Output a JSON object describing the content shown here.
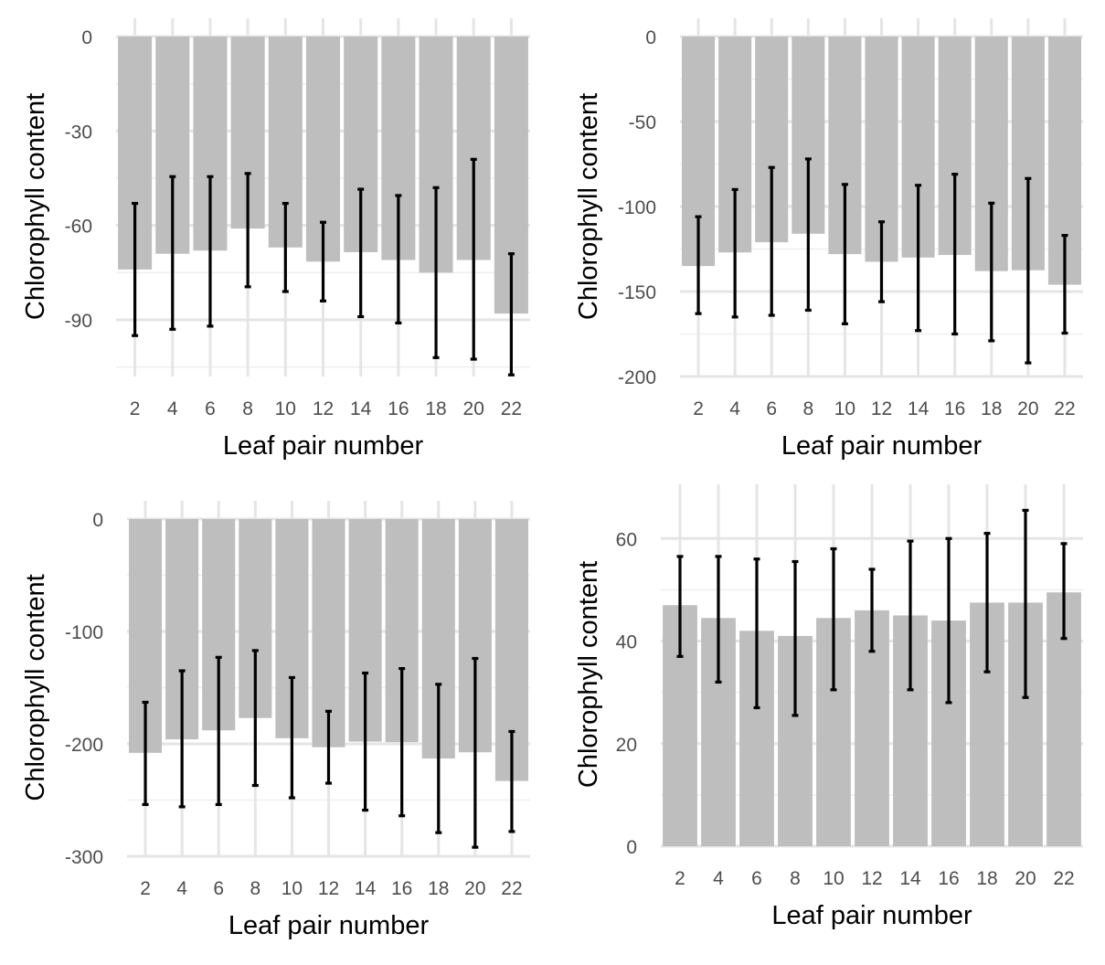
{
  "chart_data": [
    {
      "type": "bar",
      "panel": "top-left",
      "xlabel": "Leaf pair number",
      "ylabel": "Chlorophyll content",
      "x_ticks": [
        "2",
        "4",
        "6",
        "8",
        "10",
        "12",
        "14",
        "16",
        "18",
        "20",
        "22"
      ],
      "y_ticks": [
        "0",
        "-30",
        "-60",
        "-90"
      ],
      "ylim": [
        -108,
        0
      ],
      "grid": true,
      "categories": [
        2,
        4,
        6,
        8,
        10,
        12,
        14,
        16,
        18,
        20,
        22
      ],
      "values": [
        -74,
        -69,
        -68,
        -61,
        -67,
        -71.5,
        -68.5,
        -71,
        -75,
        -71,
        -88
      ],
      "error_low": [
        -95,
        -93,
        -92,
        -79.5,
        -81,
        -84,
        -89,
        -91,
        -102,
        -102.5,
        -107.5
      ],
      "error_high": [
        -53,
        -44.5,
        -44.5,
        -43.5,
        -53,
        -59,
        -48.5,
        -50.5,
        -48,
        -39,
        -69
      ]
    },
    {
      "type": "bar",
      "panel": "top-right",
      "xlabel": "Leaf pair number",
      "ylabel": "Chlorophyll content",
      "x_ticks": [
        "2",
        "4",
        "6",
        "8",
        "10",
        "12",
        "14",
        "16",
        "18",
        "20",
        "22"
      ],
      "y_ticks": [
        "0",
        "-50",
        "-100",
        "-150",
        "-200"
      ],
      "ylim": [
        -200,
        0
      ],
      "grid": true,
      "categories": [
        2,
        4,
        6,
        8,
        10,
        12,
        14,
        16,
        18,
        20,
        22
      ],
      "values": [
        -135,
        -127,
        -121,
        -116,
        -128,
        -132.5,
        -130,
        -128.5,
        -138,
        -137.5,
        -146
      ],
      "error_low": [
        -163,
        -165,
        -164,
        -161,
        -169,
        -156,
        -173,
        -175,
        -179,
        -192,
        -174.5
      ],
      "error_high": [
        -106,
        -90,
        -77,
        -72,
        -87,
        -109,
        -87.5,
        -81,
        -98,
        -83.5,
        -117
      ]
    },
    {
      "type": "bar",
      "panel": "bottom-left",
      "xlabel": "Leaf pair number",
      "ylabel": "Chlorophyll content",
      "x_ticks": [
        "2",
        "4",
        "6",
        "8",
        "10",
        "12",
        "14",
        "16",
        "18",
        "20",
        "22"
      ],
      "y_ticks": [
        "0",
        "-100",
        "-200",
        "-300"
      ],
      "ylim": [
        -300,
        0
      ],
      "grid": true,
      "categories": [
        2,
        4,
        6,
        8,
        10,
        12,
        14,
        16,
        18,
        20,
        22
      ],
      "values": [
        -208,
        -196,
        -188,
        -177,
        -195,
        -203,
        -198,
        -198.5,
        -213,
        -207.5,
        -233
      ],
      "error_low": [
        -254,
        -256,
        -254,
        -237,
        -248,
        -235,
        -259,
        -264,
        -279,
        -292,
        -278
      ],
      "error_high": [
        -163,
        -135,
        -123,
        -117,
        -141,
        -171,
        -137,
        -133,
        -147,
        -124,
        -189
      ]
    },
    {
      "type": "bar",
      "panel": "bottom-right",
      "xlabel": "Leaf pair number",
      "ylabel": "Chlorophyll content",
      "x_ticks": [
        "2",
        "4",
        "6",
        "8",
        "10",
        "12",
        "14",
        "16",
        "18",
        "20",
        "22"
      ],
      "y_ticks": [
        "0",
        "20",
        "40",
        "60"
      ],
      "ylim": [
        0,
        67
      ],
      "grid": true,
      "categories": [
        2,
        4,
        6,
        8,
        10,
        12,
        14,
        16,
        18,
        20,
        22
      ],
      "values": [
        47,
        44.5,
        42,
        41,
        44.5,
        46,
        45,
        44,
        47.5,
        47.5,
        49.5
      ],
      "error_low": [
        37,
        32,
        27,
        25.5,
        30.5,
        38,
        30.5,
        28,
        34,
        29,
        40.5
      ],
      "error_high": [
        56.5,
        56.5,
        56,
        55.5,
        58,
        54,
        59.5,
        60,
        61,
        65.5,
        59
      ]
    }
  ]
}
